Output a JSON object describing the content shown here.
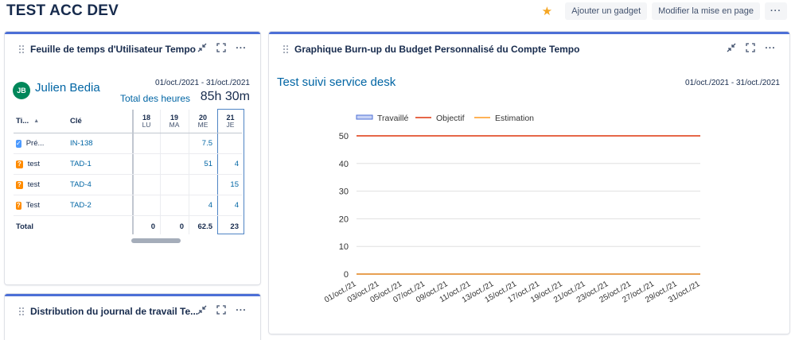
{
  "page": {
    "title": "TEST ACC DEV",
    "actions": {
      "add_gadget": "Ajouter un gadget",
      "edit_layout": "Modifier la mise en page",
      "more": "···"
    }
  },
  "timesheet": {
    "title": "Feuille de temps d'Utilisateur Tempo",
    "avatar_initials": "JB",
    "user_name": "Julien Bedia",
    "date_range": "01/oct./2021 - 31/oct./2021",
    "total_label": "Total des heures",
    "total_value": "85h 30m",
    "columns": {
      "type": "Ti...",
      "key": "Clé",
      "days": [
        {
          "num": "18",
          "dow": "LU"
        },
        {
          "num": "19",
          "dow": "MA"
        },
        {
          "num": "20",
          "dow": "ME"
        },
        {
          "num": "21",
          "dow": "JE"
        }
      ]
    },
    "rows": [
      {
        "icon": "checkbox-icon",
        "type": "Pré...",
        "key": "IN-138",
        "d18": "",
        "d19": "",
        "d20": "7.5",
        "d21": ""
      },
      {
        "icon": "question-icon",
        "type": "test",
        "key": "TAD-1",
        "d18": "",
        "d19": "",
        "d20": "51",
        "d21": "4"
      },
      {
        "icon": "question-icon",
        "type": "test",
        "key": "TAD-4",
        "d18": "",
        "d19": "",
        "d20": "",
        "d21": "15"
      },
      {
        "icon": "question-icon",
        "type": "Test",
        "key": "TAD-2",
        "d18": "",
        "d19": "",
        "d20": "4",
        "d21": "4"
      }
    ],
    "total_row": {
      "label": "Total",
      "d18": "0",
      "d19": "0",
      "d20": "62.5",
      "d21": "23"
    }
  },
  "distribution": {
    "title": "Distribution du journal de travail Te..."
  },
  "burnup": {
    "title": "Graphique Burn-up du Budget Personnalisé du Compte Tempo",
    "subtitle": "Test suivi service desk",
    "date_range": "01/oct./2021 - 31/oct./2021"
  },
  "colors": {
    "accent": "#4c6fd6",
    "link": "#0065a4",
    "travaille": "#4c6fd6",
    "objectif": "#de350b",
    "estimation": "#ff991f"
  },
  "chart_data": {
    "type": "line",
    "title": "",
    "xlabel": "",
    "ylabel": "",
    "ylim": [
      0,
      50
    ],
    "yticks": [
      0,
      10,
      20,
      30,
      40,
      50
    ],
    "grid": true,
    "legend": "top-left",
    "categories": [
      "01/oct./21",
      "03/oct./21",
      "05/oct./21",
      "07/oct./21",
      "09/oct./21",
      "11/oct./21",
      "13/oct./21",
      "15/oct./21",
      "17/oct./21",
      "19/oct./21",
      "21/oct./21",
      "23/oct./21",
      "25/oct./21",
      "27/oct./21",
      "29/oct./21",
      "31/oct./21"
    ],
    "series": [
      {
        "name": "Travaillé",
        "values": [
          0,
          0,
          0,
          0,
          0,
          0,
          0,
          0,
          0,
          0,
          0,
          0,
          0,
          0,
          0,
          0
        ]
      },
      {
        "name": "Objectif",
        "values": [
          50,
          50,
          50,
          50,
          50,
          50,
          50,
          50,
          50,
          50,
          50,
          50,
          50,
          50,
          50,
          50
        ]
      },
      {
        "name": "Estimation",
        "values": [
          0,
          0,
          0,
          0,
          0,
          0,
          0,
          0,
          0,
          0,
          0,
          0,
          0,
          0,
          0,
          0
        ]
      }
    ]
  }
}
